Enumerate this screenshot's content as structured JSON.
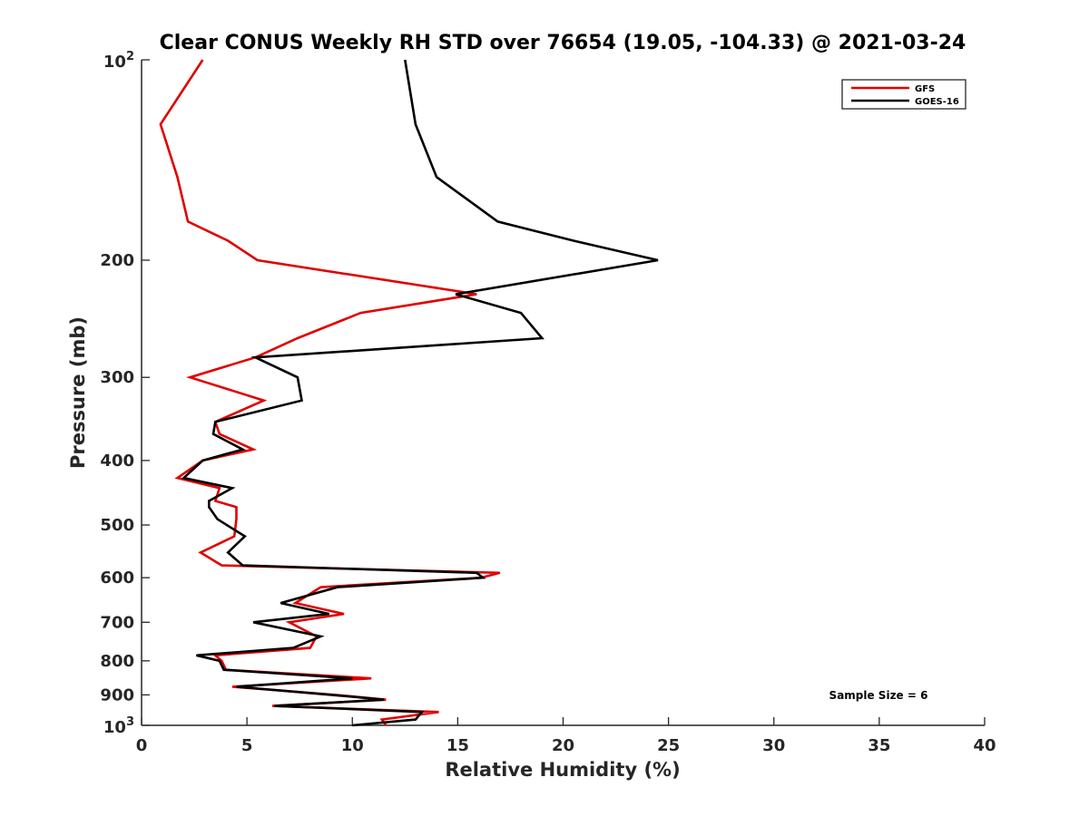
{
  "chart_data": {
    "type": "line",
    "title": "Clear CONUS Weekly RH STD over 76654 (19.05, -104.33) @ 2021-03-24",
    "xlabel": "Relative Humidity (%)",
    "ylabel": "Pressure (mb)",
    "xlim": [
      0,
      40
    ],
    "ylim": [
      100,
      1000
    ],
    "yscale": "log",
    "y_reversed": true,
    "x_ticks": [
      "0",
      "5",
      "10",
      "15",
      "20",
      "25",
      "30",
      "35",
      "40"
    ],
    "y_tick_values": [
      200,
      300,
      400,
      500,
      600,
      700,
      800,
      900
    ],
    "y_tick_labels": [
      "200",
      "300",
      "400",
      "500",
      "600",
      "700",
      "800",
      "900"
    ],
    "y_end_labels": {
      "top": {
        "base": "10",
        "exp": "2",
        "value": 100
      },
      "bottom": {
        "base": "10",
        "exp": "3",
        "value": 1000
      }
    },
    "legend_position": "top-right",
    "annotation": "Sample Size = 6",
    "series": [
      {
        "name": "GFS",
        "color": "#e00000",
        "points": [
          [
            2.9,
            100
          ],
          [
            0.9,
            125
          ],
          [
            1.7,
            150
          ],
          [
            2.2,
            175
          ],
          [
            4.1,
            187
          ],
          [
            5.5,
            200
          ],
          [
            15.9,
            225
          ],
          [
            10.4,
            240
          ],
          [
            7.4,
            262
          ],
          [
            5.4,
            280
          ],
          [
            2.3,
            300
          ],
          [
            5.8,
            325
          ],
          [
            3.5,
            350
          ],
          [
            3.7,
            365
          ],
          [
            5.3,
            385
          ],
          [
            2.9,
            400
          ],
          [
            1.7,
            425
          ],
          [
            3.7,
            440
          ],
          [
            3.5,
            460
          ],
          [
            4.5,
            470
          ],
          [
            4.5,
            490
          ],
          [
            4.4,
            520
          ],
          [
            2.8,
            550
          ],
          [
            3.8,
            575
          ],
          [
            17.0,
            590
          ],
          [
            16.1,
            600
          ],
          [
            8.5,
            620
          ],
          [
            7.3,
            655
          ],
          [
            9.6,
            680
          ],
          [
            7.0,
            700
          ],
          [
            8.3,
            735
          ],
          [
            8.0,
            765
          ],
          [
            3.5,
            785
          ],
          [
            3.8,
            800
          ],
          [
            4.0,
            825
          ],
          [
            10.9,
            850
          ],
          [
            4.3,
            875
          ],
          [
            9.2,
            900
          ],
          [
            11.6,
            915
          ],
          [
            6.2,
            935
          ],
          [
            14.1,
            955
          ],
          [
            11.4,
            980
          ],
          [
            11.6,
            1000
          ]
        ]
      },
      {
        "name": "GOES-16",
        "color": "#000000",
        "points": [
          [
            12.5,
            100
          ],
          [
            13.0,
            125
          ],
          [
            14.0,
            150
          ],
          [
            16.9,
            175
          ],
          [
            20.5,
            187
          ],
          [
            24.5,
            200
          ],
          [
            14.9,
            225
          ],
          [
            18.0,
            240
          ],
          [
            19.0,
            262
          ],
          [
            5.4,
            280
          ],
          [
            7.4,
            300
          ],
          [
            7.6,
            325
          ],
          [
            3.5,
            350
          ],
          [
            3.4,
            365
          ],
          [
            4.8,
            385
          ],
          [
            2.9,
            400
          ],
          [
            2.0,
            425
          ],
          [
            4.3,
            440
          ],
          [
            3.2,
            460
          ],
          [
            3.2,
            470
          ],
          [
            3.6,
            490
          ],
          [
            4.9,
            520
          ],
          [
            4.1,
            550
          ],
          [
            4.8,
            575
          ],
          [
            15.9,
            590
          ],
          [
            16.2,
            600
          ],
          [
            9.3,
            620
          ],
          [
            6.6,
            655
          ],
          [
            8.9,
            680
          ],
          [
            5.3,
            700
          ],
          [
            8.5,
            735
          ],
          [
            7.2,
            765
          ],
          [
            2.6,
            785
          ],
          [
            3.7,
            800
          ],
          [
            3.9,
            825
          ],
          [
            10.0,
            850
          ],
          [
            4.5,
            875
          ],
          [
            9.0,
            900
          ],
          [
            11.5,
            915
          ],
          [
            6.3,
            935
          ],
          [
            13.3,
            955
          ],
          [
            13.0,
            980
          ],
          [
            10.0,
            1000
          ]
        ]
      }
    ]
  }
}
